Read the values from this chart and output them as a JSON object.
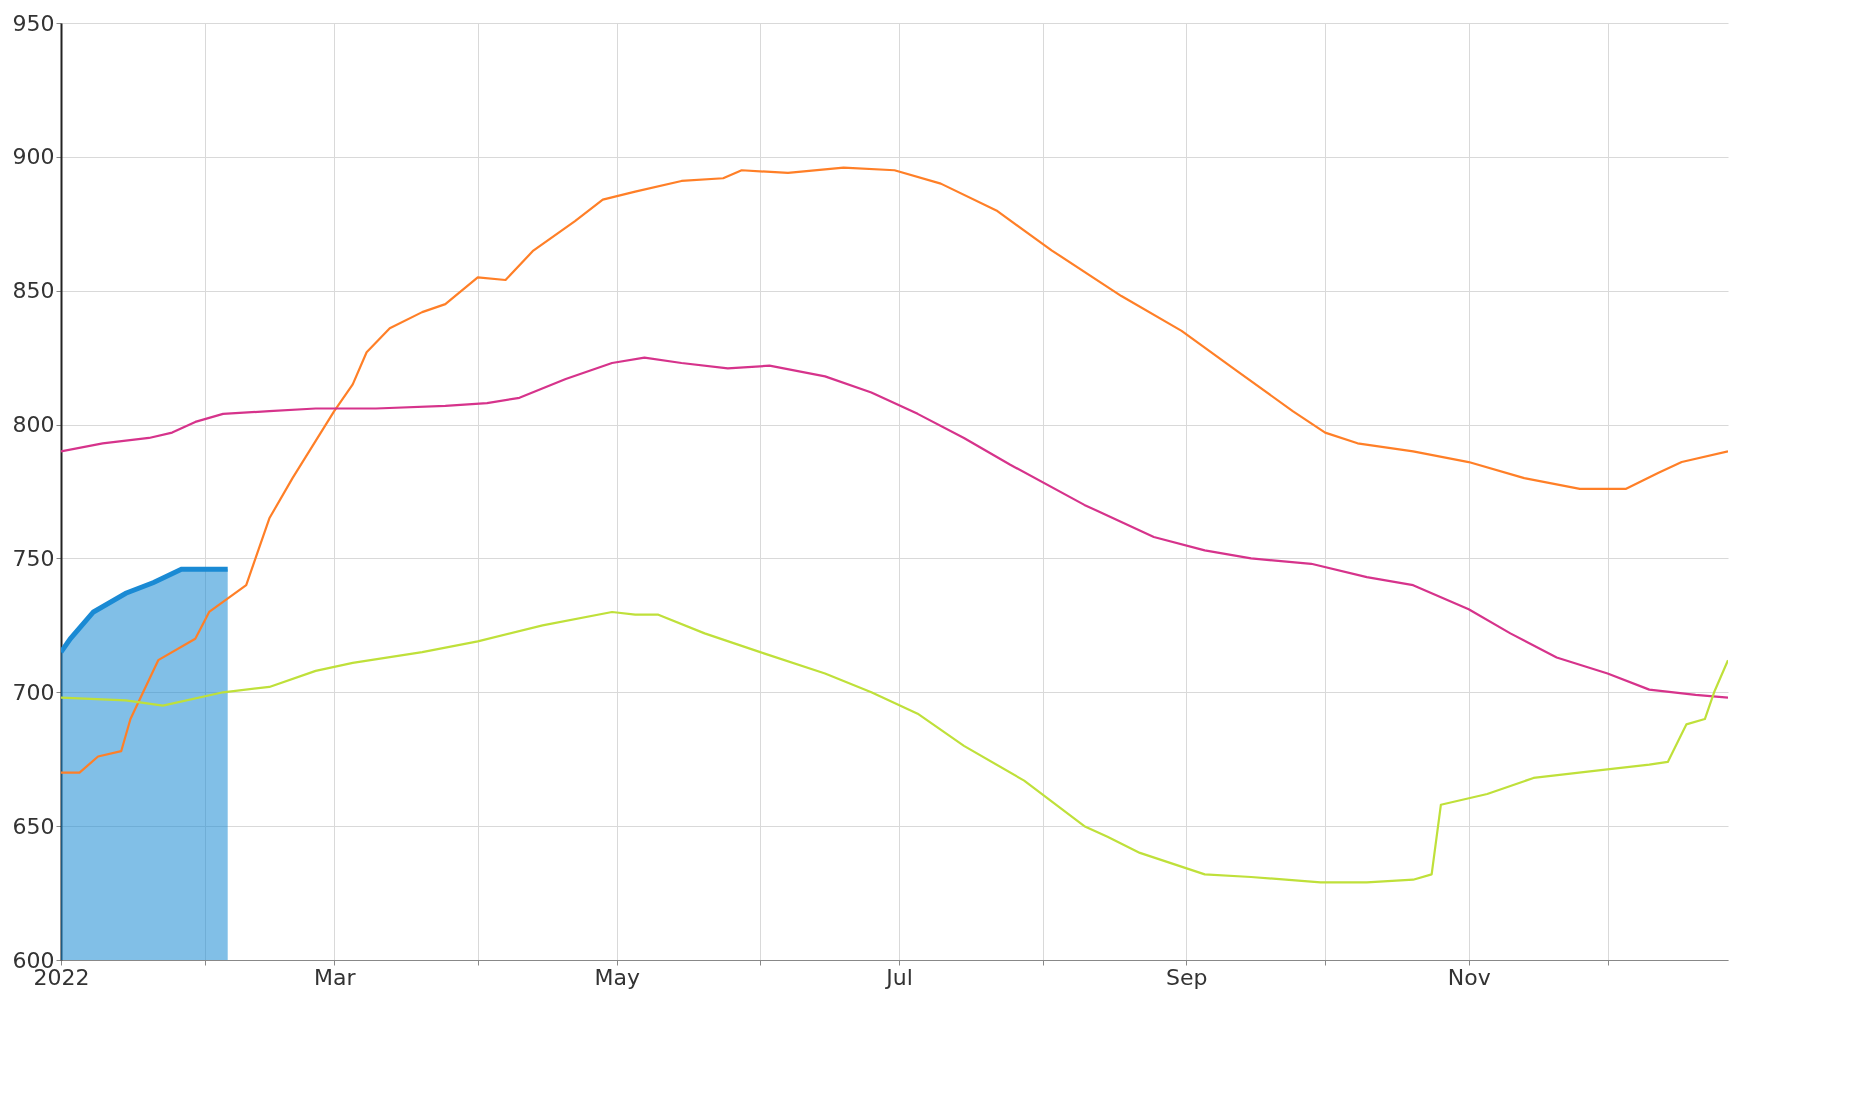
{
  "chart_data": {
    "type": "line",
    "xlim": [
      "2022-01-01",
      "2022-12-27"
    ],
    "ylim": [
      600,
      950
    ],
    "yticks": [
      600,
      650,
      700,
      750,
      800,
      850,
      900,
      950
    ],
    "xticks": [
      {
        "value": "2022-01-01",
        "label": "2022"
      },
      {
        "value": "2022-02-01",
        "label": null
      },
      {
        "value": "2022-03-01",
        "label": "Mar"
      },
      {
        "value": "2022-04-01",
        "label": null
      },
      {
        "value": "2022-05-01",
        "label": "May"
      },
      {
        "value": "2022-06-01",
        "label": null
      },
      {
        "value": "2022-07-01",
        "label": "Jul"
      },
      {
        "value": "2022-08-01",
        "label": null
      },
      {
        "value": "2022-09-01",
        "label": "Sep"
      },
      {
        "value": "2022-10-01",
        "label": null
      },
      {
        "value": "2022-11-01",
        "label": "Nov"
      },
      {
        "value": "2022-12-01",
        "label": null
      }
    ],
    "grid": true,
    "series": [
      {
        "type": "area",
        "color": "#1a8ad4",
        "x": [
          "2022-01-01",
          "2022-01-03",
          "2022-01-08",
          "2022-01-15",
          "2022-01-21",
          "2022-01-27",
          "2022-02-06"
        ],
        "values": [
          715,
          720,
          730,
          737,
          741,
          746,
          746
        ]
      },
      {
        "color": "#ff7f27",
        "x": [
          "2022-01-01",
          "2022-01-05",
          "2022-01-09",
          "2022-01-14",
          "2022-01-16",
          "2022-01-22",
          "2022-01-30",
          "2022-02-02",
          "2022-02-10",
          "2022-02-15",
          "2022-02-20",
          "2022-03-01",
          "2022-03-05",
          "2022-03-08",
          "2022-03-13",
          "2022-03-20",
          "2022-03-25",
          "2022-04-01",
          "2022-04-07",
          "2022-04-13",
          "2022-04-22",
          "2022-04-28",
          "2022-05-05",
          "2022-05-15",
          "2022-05-24",
          "2022-05-28",
          "2022-06-07",
          "2022-06-19",
          "2022-06-30",
          "2022-07-10",
          "2022-07-22",
          "2022-08-03",
          "2022-08-18",
          "2022-08-31",
          "2022-09-12",
          "2022-09-24",
          "2022-10-01",
          "2022-10-08",
          "2022-10-20",
          "2022-11-01",
          "2022-11-13",
          "2022-11-25",
          "2022-12-05",
          "2022-12-12",
          "2022-12-17",
          "2022-12-27"
        ],
        "values": [
          670,
          670,
          676,
          678,
          690,
          712,
          720,
          730,
          740,
          765,
          780,
          805,
          815,
          827,
          836,
          842,
          845,
          855,
          854,
          865,
          876,
          884,
          887,
          891,
          892,
          895,
          894,
          896,
          895,
          890,
          880,
          865,
          848,
          835,
          820,
          805,
          797,
          793,
          790,
          786,
          780,
          776,
          776,
          782,
          786,
          790
        ]
      },
      {
        "color": "#d6338b",
        "x": [
          "2022-01-01",
          "2022-01-10",
          "2022-01-20",
          "2022-01-25",
          "2022-01-30",
          "2022-02-05",
          "2022-02-15",
          "2022-02-25",
          "2022-03-10",
          "2022-03-25",
          "2022-04-03",
          "2022-04-10",
          "2022-04-20",
          "2022-04-30",
          "2022-05-07",
          "2022-05-15",
          "2022-05-25",
          "2022-06-03",
          "2022-06-15",
          "2022-06-25",
          "2022-07-05",
          "2022-07-15",
          "2022-07-25",
          "2022-08-10",
          "2022-08-25",
          "2022-09-05",
          "2022-09-15",
          "2022-09-28",
          "2022-10-10",
          "2022-10-20",
          "2022-11-01",
          "2022-11-10",
          "2022-11-20",
          "2022-12-01",
          "2022-12-10",
          "2022-12-20",
          "2022-12-27"
        ],
        "values": [
          790,
          793,
          795,
          797,
          801,
          804,
          805,
          806,
          806,
          807,
          808,
          810,
          817,
          823,
          825,
          823,
          821,
          822,
          818,
          812,
          804,
          795,
          785,
          770,
          758,
          753,
          750,
          748,
          743,
          740,
          731,
          722,
          713,
          707,
          701,
          699,
          698
        ]
      },
      {
        "color": "#bfe03a",
        "x": [
          "2022-01-01",
          "2022-01-15",
          "2022-01-23",
          "2022-02-05",
          "2022-02-15",
          "2022-02-25",
          "2022-03-05",
          "2022-03-20",
          "2022-04-01",
          "2022-04-15",
          "2022-04-30",
          "2022-05-05",
          "2022-05-10",
          "2022-05-20",
          "2022-06-01",
          "2022-06-15",
          "2022-06-25",
          "2022-07-05",
          "2022-07-15",
          "2022-07-28",
          "2022-08-10",
          "2022-08-15",
          "2022-08-22",
          "2022-09-05",
          "2022-09-15",
          "2022-09-30",
          "2022-10-10",
          "2022-10-20",
          "2022-10-24",
          "2022-10-26",
          "2022-11-05",
          "2022-11-15",
          "2022-11-30",
          "2022-12-10",
          "2022-12-14",
          "2022-12-18",
          "2022-12-22",
          "2022-12-24",
          "2022-12-27"
        ],
        "values": [
          698,
          697,
          695,
          700,
          702,
          708,
          711,
          715,
          719,
          725,
          730,
          729,
          729,
          722,
          715,
          707,
          700,
          692,
          680,
          667,
          650,
          646,
          640,
          632,
          631,
          629,
          629,
          630,
          632,
          658,
          662,
          668,
          671,
          673,
          674,
          688,
          690,
          700,
          712
        ]
      }
    ]
  }
}
